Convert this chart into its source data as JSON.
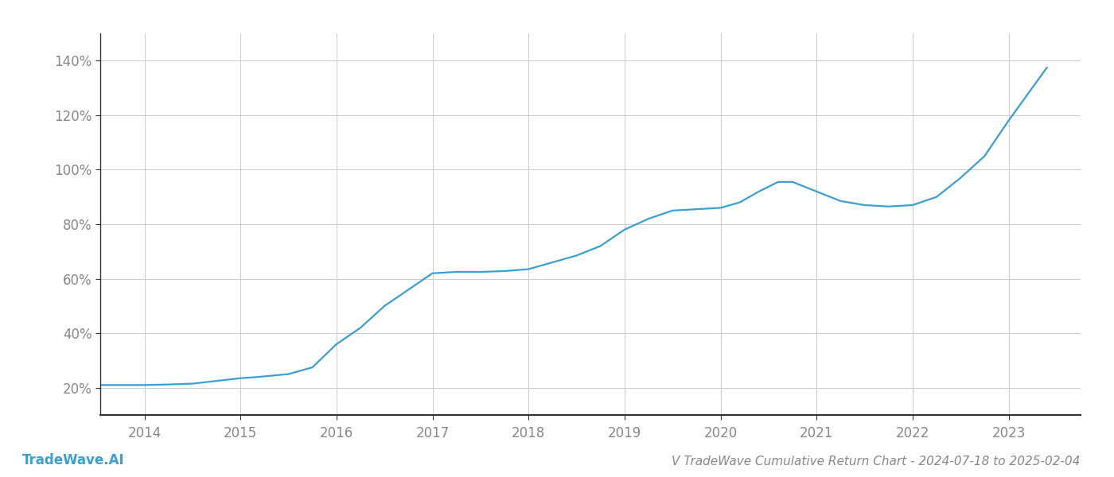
{
  "title_bottom": "V TradeWave Cumulative Return Chart - 2024-07-18 to 2025-02-04",
  "watermark": "TradeWave.AI",
  "line_color": "#3a9fd1",
  "background_color": "#ffffff",
  "grid_color": "#cccccc",
  "x_years": [
    2014,
    2015,
    2016,
    2017,
    2018,
    2019,
    2020,
    2021,
    2022,
    2023
  ],
  "x_values": [
    2013.54,
    2014.0,
    2014.25,
    2014.5,
    2015.0,
    2015.2,
    2015.5,
    2015.75,
    2016.0,
    2016.25,
    2016.5,
    2016.75,
    2017.0,
    2017.25,
    2017.5,
    2017.75,
    2018.0,
    2018.25,
    2018.5,
    2018.75,
    2019.0,
    2019.25,
    2019.5,
    2019.75,
    2020.0,
    2020.2,
    2020.4,
    2020.6,
    2020.75,
    2021.0,
    2021.25,
    2021.5,
    2021.75,
    2022.0,
    2022.25,
    2022.5,
    2022.75,
    2023.0,
    2023.4
  ],
  "y_values": [
    21.0,
    21.0,
    21.2,
    21.5,
    23.5,
    24.0,
    25.0,
    27.5,
    36.0,
    42.0,
    50.0,
    56.0,
    62.0,
    62.5,
    62.5,
    62.8,
    63.5,
    66.0,
    68.5,
    72.0,
    78.0,
    82.0,
    85.0,
    85.5,
    86.0,
    88.0,
    92.0,
    95.5,
    95.5,
    92.0,
    88.5,
    87.0,
    86.5,
    87.0,
    90.0,
    97.0,
    105.0,
    118.0,
    137.5
  ],
  "ylim": [
    10,
    150
  ],
  "xlim": [
    2013.54,
    2023.75
  ],
  "yticks": [
    20,
    40,
    60,
    80,
    100,
    120,
    140
  ],
  "ytick_labels": [
    "20%",
    "40%",
    "60%",
    "80%",
    "100%",
    "120%",
    "140%"
  ],
  "title_fontsize": 11,
  "watermark_fontsize": 12,
  "axis_label_color": "#888888",
  "spine_color": "#333333",
  "line_width": 1.6
}
